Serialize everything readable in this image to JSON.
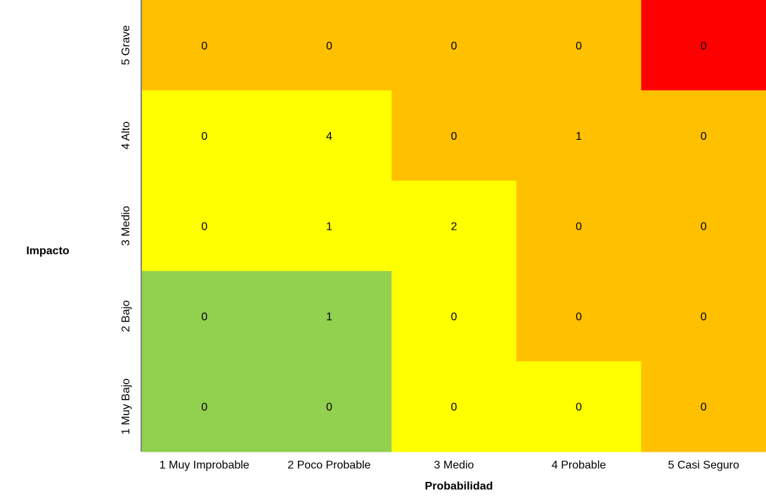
{
  "chart_data": {
    "type": "heatmap",
    "title": "",
    "xlabel": "Probabilidad",
    "ylabel": "Impacto",
    "x_categories": [
      "1 Muy Improbable",
      "2 Poco Probable",
      "3 Medio",
      "4 Probable",
      "5 Casi Seguro"
    ],
    "y_categories": [
      "5 Grave",
      "4 Alto",
      "3 Medio",
      "2 Bajo",
      "1 Muy Bajo"
    ],
    "values": [
      [
        0,
        0,
        0,
        0,
        0
      ],
      [
        0,
        4,
        0,
        1,
        0
      ],
      [
        0,
        1,
        2,
        0,
        0
      ],
      [
        0,
        1,
        0,
        0,
        0
      ],
      [
        0,
        0,
        0,
        0,
        0
      ]
    ],
    "cell_colors": [
      [
        "orange",
        "orange",
        "orange",
        "orange",
        "red"
      ],
      [
        "yellow",
        "yellow",
        "orange",
        "orange",
        "orange"
      ],
      [
        "yellow",
        "yellow",
        "yellow",
        "orange",
        "orange"
      ],
      [
        "green",
        "green",
        "yellow",
        "orange",
        "orange"
      ],
      [
        "green",
        "green",
        "yellow",
        "yellow",
        "orange"
      ]
    ],
    "palette": {
      "green": "#92D050",
      "yellow": "#FFFF00",
      "orange": "#FFC000",
      "red": "#FF0000"
    },
    "grid": false
  }
}
